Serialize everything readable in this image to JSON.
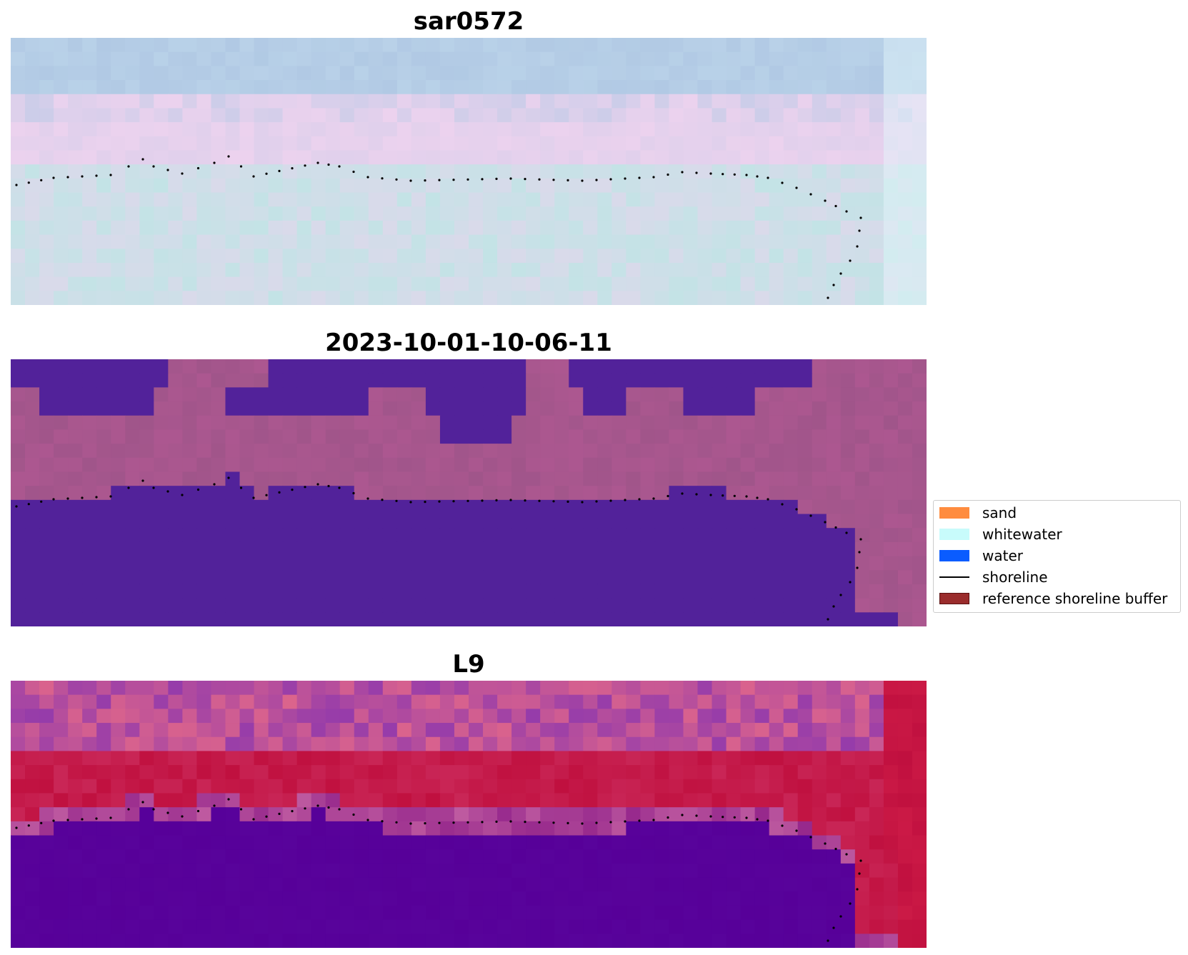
{
  "panels": [
    {
      "title": "sar0572",
      "style": "rgb"
    },
    {
      "title": "2023-10-01-10-06-11",
      "style": "classified"
    },
    {
      "title": "L9",
      "style": "index"
    }
  ],
  "legend": {
    "items": [
      {
        "label": "sand",
        "color": "#ff8c3f",
        "kind": "patch"
      },
      {
        "label": "whitewater",
        "color": "#c8fbfb",
        "kind": "patch"
      },
      {
        "label": "water",
        "color": "#0a5cff",
        "kind": "patch"
      },
      {
        "label": "shoreline",
        "color": "#000000",
        "kind": "line"
      },
      {
        "label": "reference shoreline buffer",
        "color": "#9a2c2c",
        "kind": "patch"
      }
    ]
  },
  "colors": {
    "classified_water": "#52229a",
    "classified_land": "#a0558a",
    "index_water": "#570099",
    "index_land": "#c0103f",
    "rgb_sky": "#b1c9e4",
    "rgb_pink": "#ecd2ee",
    "rgb_cyan": "#c3e3e6"
  }
}
